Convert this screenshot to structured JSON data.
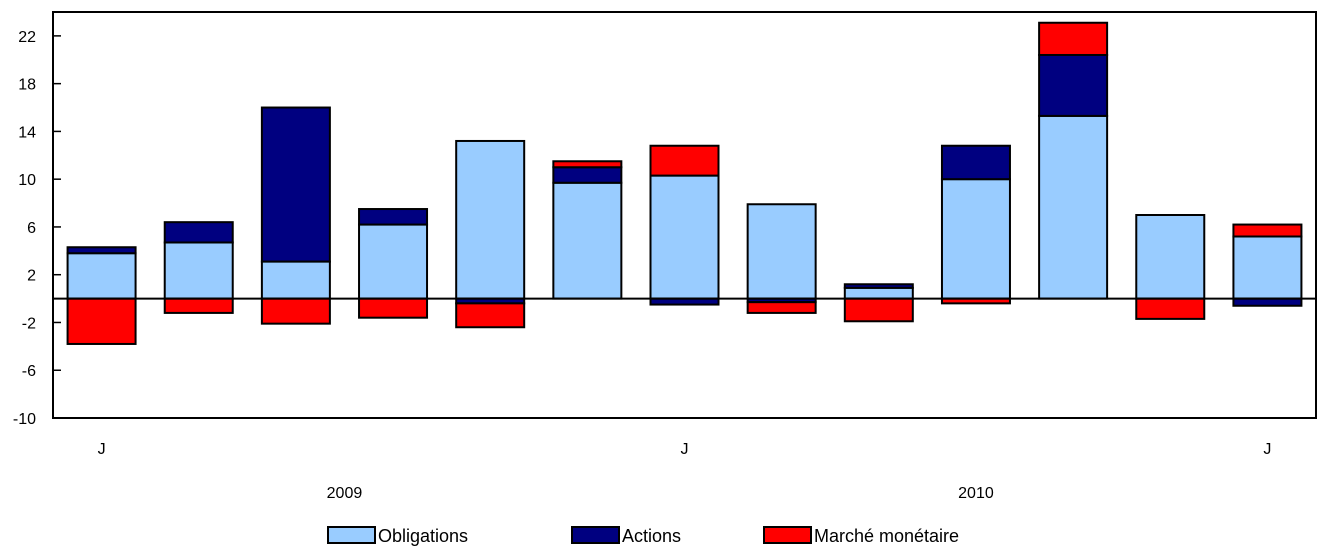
{
  "chart_data": {
    "type": "bar",
    "stacked": true,
    "categories": [
      "",
      "",
      "",
      "",
      "",
      "",
      "",
      "",
      "",
      "",
      "",
      "",
      ""
    ],
    "x_tick_labels": [
      "J",
      "",
      "",
      "",
      "",
      "",
      "J",
      "",
      "",
      "",
      "",
      "",
      "J"
    ],
    "year_labels": [
      {
        "label": "2009",
        "center_category": 2.5
      },
      {
        "label": "2010",
        "center_category": 9
      }
    ],
    "series": [
      {
        "name": "Obligations",
        "color": "#99ccff",
        "values": [
          3.8,
          4.7,
          3.1,
          6.2,
          13.2,
          9.7,
          10.3,
          7.9,
          0.9,
          10.0,
          15.3,
          7.0,
          5.2
        ]
      },
      {
        "name": "Actions",
        "color": "#000080",
        "values": [
          0.5,
          1.7,
          12.9,
          1.3,
          -0.4,
          1.3,
          -0.5,
          -0.3,
          0.3,
          2.8,
          5.1,
          0.0,
          -0.6
        ]
      },
      {
        "name": "Marché monétaire",
        "color": "#ff0000",
        "values": [
          -3.8,
          -1.2,
          -2.1,
          -1.6,
          -2.0,
          0.5,
          2.5,
          -0.9,
          -1.9,
          -0.4,
          2.7,
          -1.7,
          1.0
        ]
      }
    ],
    "ylim": [
      -10,
      24
    ],
    "yticks": [
      -10,
      -6,
      -2,
      2,
      6,
      10,
      14,
      18,
      22
    ],
    "grid": false,
    "legend": "bottom-center",
    "title": "",
    "xlabel": "",
    "ylabel": ""
  }
}
